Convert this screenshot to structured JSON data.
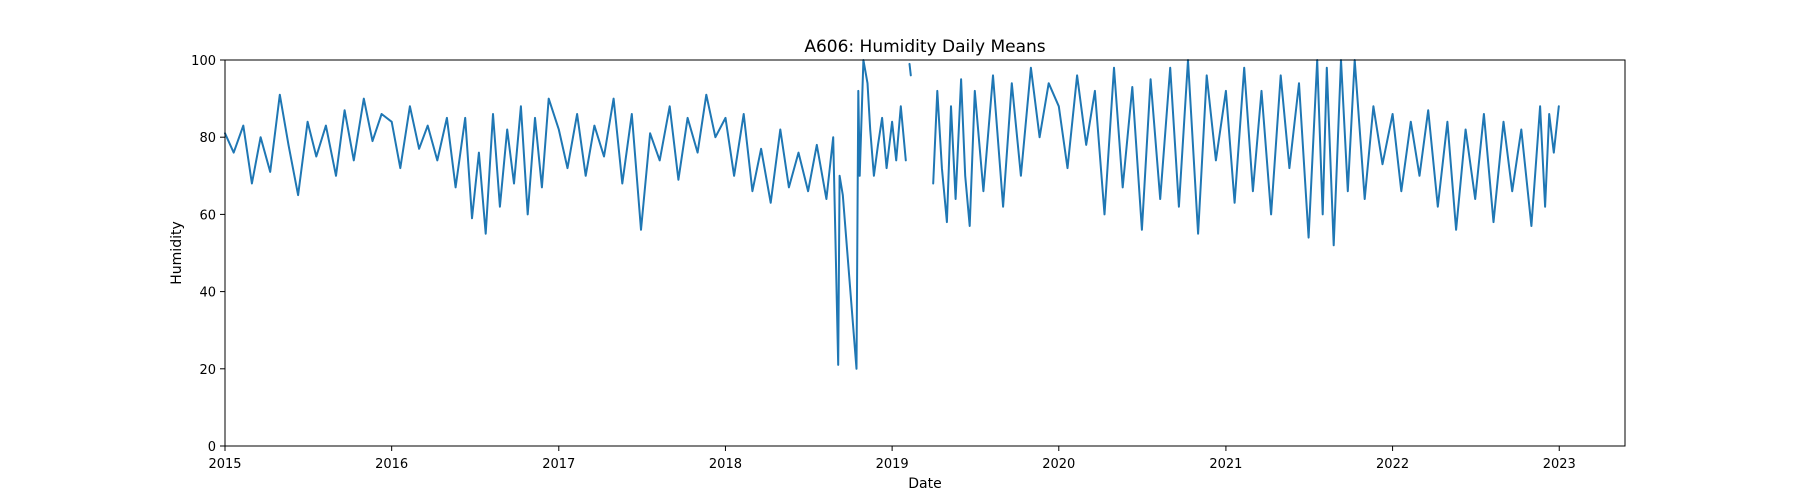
{
  "chart_data": {
    "type": "line",
    "title": "A606: Humidity Daily Means",
    "xlabel": "Date",
    "ylabel": "Humidity",
    "ylim": [
      0,
      100
    ],
    "xlim": [
      "2015-01-01",
      "2023-05-25"
    ],
    "yticks": [
      0,
      20,
      40,
      60,
      80,
      100
    ],
    "xticks": [
      "2015",
      "2016",
      "2017",
      "2018",
      "2019",
      "2020",
      "2021",
      "2022",
      "2023"
    ],
    "grid": false,
    "legend": "none",
    "color": "#1f77b4",
    "series": [
      {
        "segments": [
          {
            "x": [
              "2015-01-01",
              "2015-01-20",
              "2015-02-10",
              "2015-03-01",
              "2015-03-20",
              "2015-04-10",
              "2015-05-01",
              "2015-05-20",
              "2015-06-10",
              "2015-07-01",
              "2015-07-20",
              "2015-08-10",
              "2015-09-01",
              "2015-09-20",
              "2015-10-10",
              "2015-11-01",
              "2015-11-20",
              "2015-12-10",
              "2016-01-01",
              "2016-01-20",
              "2016-02-10",
              "2016-03-01",
              "2016-03-20",
              "2016-04-10",
              "2016-05-01",
              "2016-05-20",
              "2016-06-10",
              "2016-06-25",
              "2016-07-10",
              "2016-07-25",
              "2016-08-10",
              "2016-08-25",
              "2016-09-10",
              "2016-09-25",
              "2016-10-10",
              "2016-10-25",
              "2016-11-10",
              "2016-11-25",
              "2016-12-10",
              "2017-01-01",
              "2017-01-20",
              "2017-02-10",
              "2017-03-01",
              "2017-03-20",
              "2017-04-10",
              "2017-05-01",
              "2017-05-20",
              "2017-06-10",
              "2017-06-30",
              "2017-07-20",
              "2017-08-10",
              "2017-09-01",
              "2017-09-20",
              "2017-10-10",
              "2017-11-01",
              "2017-11-20",
              "2017-12-10",
              "2018-01-01",
              "2018-01-20",
              "2018-02-10",
              "2018-03-01",
              "2018-03-20",
              "2018-04-10",
              "2018-05-01",
              "2018-05-20",
              "2018-06-10",
              "2018-07-01",
              "2018-07-20",
              "2018-08-10",
              "2018-08-25",
              "2018-09-05",
              "2018-09-08",
              "2018-09-15",
              "2018-10-15",
              "2018-10-19",
              "2018-10-22",
              "2018-10-30",
              "2018-11-08",
              "2018-11-14",
              "2018-11-22",
              "2018-12-01",
              "2018-12-10",
              "2018-12-20",
              "2019-01-01",
              "2019-01-10",
              "2019-01-20",
              "2019-01-31"
            ],
            "y": [
              81,
              76,
              83,
              68,
              80,
              71,
              91,
              78,
              65,
              84,
              75,
              83,
              70,
              87,
              74,
              90,
              79,
              86,
              84,
              72,
              88,
              77,
              83,
              74,
              85,
              67,
              85,
              59,
              76,
              55,
              86,
              62,
              82,
              68,
              88,
              60,
              85,
              67,
              90,
              82,
              72,
              86,
              70,
              83,
              75,
              90,
              68,
              86,
              56,
              81,
              74,
              88,
              69,
              85,
              76,
              91,
              80,
              85,
              70,
              86,
              66,
              77,
              63,
              82,
              67,
              76,
              66,
              78,
              64,
              80,
              21,
              70,
              65,
              20,
              92,
              70,
              100,
              94,
              82,
              70,
              78,
              85,
              72,
              84,
              74,
              88,
              74
            ]
          },
          {
            "x": [
              "2019-02-08",
              "2019-02-11"
            ],
            "y": [
              99,
              96
            ]
          },
          {
            "x": [
              "2019-04-01",
              "2019-04-10",
              "2019-04-20",
              "2019-05-01",
              "2019-05-10",
              "2019-05-20",
              "2019-06-01",
              "2019-06-10",
              "2019-06-20",
              "2019-07-01",
              "2019-07-20",
              "2019-08-10",
              "2019-09-01",
              "2019-09-20",
              "2019-10-10",
              "2019-11-01",
              "2019-11-20",
              "2019-12-10",
              "2020-01-01",
              "2020-01-20",
              "2020-02-10",
              "2020-03-01",
              "2020-03-20",
              "2020-04-10",
              "2020-05-01",
              "2020-05-20",
              "2020-06-10",
              "2020-07-01",
              "2020-07-20",
              "2020-08-10",
              "2020-09-01",
              "2020-09-20",
              "2020-10-10",
              "2020-11-01",
              "2020-11-20",
              "2020-12-10",
              "2021-01-01",
              "2021-01-20",
              "2021-02-10",
              "2021-03-01",
              "2021-03-20",
              "2021-04-10",
              "2021-05-01",
              "2021-05-20",
              "2021-06-10",
              "2021-07-01",
              "2021-07-20",
              "2021-08-01",
              "2021-08-10",
              "2021-08-25",
              "2021-09-10",
              "2021-09-25",
              "2021-10-10",
              "2021-11-01",
              "2021-11-20",
              "2021-12-10",
              "2022-01-01",
              "2022-01-20",
              "2022-02-10",
              "2022-03-01",
              "2022-03-20",
              "2022-04-10",
              "2022-05-01",
              "2022-05-20",
              "2022-06-10",
              "2022-07-01",
              "2022-07-20",
              "2022-08-10",
              "2022-09-01",
              "2022-09-20",
              "2022-10-10",
              "2022-11-01",
              "2022-11-20",
              "2022-12-01",
              "2022-12-10",
              "2022-12-20",
              "2022-12-31"
            ],
            "y": [
              68,
              92,
              72,
              58,
              88,
              64,
              95,
              70,
              57,
              92,
              66,
              96,
              62,
              94,
              70,
              98,
              80,
              94,
              88,
              72,
              96,
              78,
              92,
              60,
              98,
              67,
              93,
              56,
              95,
              64,
              98,
              62,
              100,
              55,
              96,
              74,
              92,
              63,
              98,
              66,
              92,
              60,
              96,
              72,
              94,
              54,
              100,
              60,
              98,
              52,
              100,
              66,
              100,
              64,
              88,
              73,
              86,
              66,
              84,
              70,
              87,
              62,
              84,
              56,
              82,
              64,
              86,
              58,
              84,
              66,
              82,
              57,
              88,
              62,
              86,
              76,
              88
            ]
          }
        ]
      }
    ]
  }
}
